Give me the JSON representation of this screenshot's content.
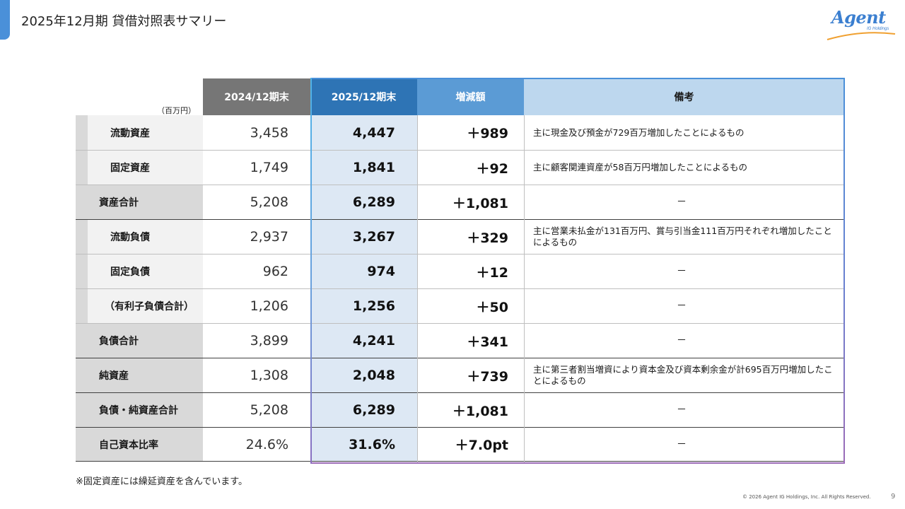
{
  "header": {
    "title": "2025年12月期 貸借対照表サマリー"
  },
  "logo": {
    "text": "Agent",
    "sub": "IG Holdings"
  },
  "table": {
    "unit": "（百万円）",
    "columns": {
      "prev": "2024/12期末",
      "curr": "2025/12期末",
      "diff": "増減額",
      "note": "備考"
    },
    "rows": [
      {
        "label": "流動資産",
        "prev": "3,458",
        "curr": "4,447",
        "diff": "＋989",
        "note": "主に現金及び預金が729百万増加したことによるもの"
      },
      {
        "label": "固定資産",
        "prev": "1,749",
        "curr": "1,841",
        "diff": "＋92",
        "note": "主に顧客関連資産が58百万円増加したことによるもの"
      },
      {
        "label": "資産合計",
        "prev": "5,208",
        "curr": "6,289",
        "diff": "＋1,081",
        "note": "－"
      },
      {
        "label": "流動負債",
        "prev": "2,937",
        "curr": "3,267",
        "diff": "＋329",
        "note": "主に営業未払金が131百万円、賞与引当金111百万円それぞれ増加したことによるもの"
      },
      {
        "label": "固定負債",
        "prev": "962",
        "curr": "974",
        "diff": "＋12",
        "note": "－"
      },
      {
        "label": "（有利子負債合計）",
        "prev": "1,206",
        "curr": "1,256",
        "diff": "＋50",
        "note": "－"
      },
      {
        "label": "負債合計",
        "prev": "3,899",
        "curr": "4,241",
        "diff": "＋341",
        "note": "－"
      },
      {
        "label": "純資産",
        "prev": "1,308",
        "curr": "2,048",
        "diff": "＋739",
        "note": "主に第三者割当増資により資本金及び資本剰余金が計695百万円増加したことによるもの"
      },
      {
        "label": "負債・純資産合計",
        "prev": "5,208",
        "curr": "6,289",
        "diff": "＋1,081",
        "note": "－"
      },
      {
        "label": "自己資本比率",
        "prev": "24.6%",
        "curr": "31.6%",
        "diff": "＋7.0pt",
        "note": "－"
      }
    ]
  },
  "footnote": "※固定資産には繰延資産を含んでいます。",
  "footer": {
    "copyright": "© 2026 Agent IG Holdings, Inc. All Rights Reserved.",
    "page": "9"
  }
}
